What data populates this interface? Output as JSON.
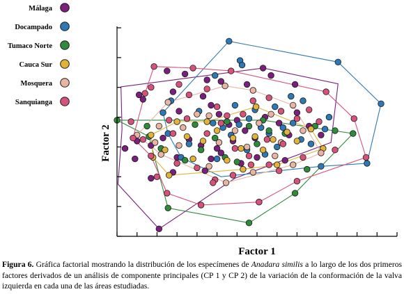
{
  "chart_data": {
    "type": "scatter",
    "title": "",
    "xlabel": "Factor 1",
    "ylabel": "Factor 2",
    "xlim": [
      -4,
      10
    ],
    "ylim": [
      -3.5,
      3.5
    ],
    "grid": false,
    "legend": "top-left",
    "convex_hulls": true,
    "series": [
      {
        "name": "Málaga",
        "color": "#7b1f7d",
        "hull": [
          [
            -3.8,
            1.52
          ],
          [
            3.3,
            2.15
          ],
          [
            7.05,
            1.62
          ],
          [
            6.7,
            -0.35
          ],
          [
            1.9,
            -1.55
          ],
          [
            -1.9,
            -3.25
          ],
          [
            -3.95,
            -1.75
          ],
          [
            -3.75,
            0.1
          ]
        ],
        "points": [
          [
            -1.5,
            2.05
          ],
          [
            -0.6,
            1.95
          ],
          [
            0.5,
            1.75
          ],
          [
            1.2,
            1.7
          ],
          [
            2.5,
            1.6
          ],
          [
            3.3,
            2.15
          ],
          [
            3.7,
            1.9
          ],
          [
            4.9,
            1.6
          ],
          [
            -2.9,
            1.25
          ],
          [
            -2.7,
            1.1
          ],
          [
            -1.2,
            1.35
          ],
          [
            -0.9,
            0.7
          ],
          [
            0.3,
            1.2
          ],
          [
            0.7,
            0.9
          ],
          [
            1.1,
            0.6
          ],
          [
            1.6,
            0.25
          ],
          [
            2.0,
            0.4
          ],
          [
            2.4,
            0.05
          ],
          [
            2.9,
            -0.2
          ],
          [
            3.4,
            0.5
          ],
          [
            4.1,
            0.3
          ],
          [
            4.6,
            -0.1
          ],
          [
            5.0,
            0.65
          ],
          [
            5.6,
            0.2
          ],
          [
            6.2,
            -0.1
          ],
          [
            -3.6,
            -0.55
          ],
          [
            -3.0,
            -0.3
          ],
          [
            -2.3,
            -0.45
          ],
          [
            -1.7,
            -0.2
          ],
          [
            -1.0,
            -0.85
          ],
          [
            -0.4,
            -0.25
          ],
          [
            0.2,
            -0.45
          ],
          [
            0.7,
            -0.9
          ],
          [
            1.2,
            -0.7
          ],
          [
            1.8,
            -0.3
          ],
          [
            2.2,
            -1.05
          ],
          [
            -1.9,
            -3.25
          ],
          [
            -2.3,
            -1.55
          ],
          [
            -1.2,
            -1.35
          ],
          [
            0.4,
            -1.3
          ],
          [
            1.0,
            -0.55
          ],
          [
            3.0,
            -0.85
          ],
          [
            4.4,
            -0.95
          ],
          [
            -3.1,
            -0.9
          ]
        ]
      },
      {
        "name": "Docampado",
        "color": "#2d78b5",
        "hull": [
          [
            -1.7,
            0.65
          ],
          [
            1.6,
            3.05
          ],
          [
            7.05,
            2.35
          ],
          [
            9.2,
            0.95
          ],
          [
            8.5,
            -1.05
          ],
          [
            6.2,
            -1.15
          ],
          [
            1.2,
            -1.5
          ],
          [
            -0.8,
            -0.85
          ],
          [
            -1.45,
            -0.05
          ]
        ],
        "points": [
          [
            1.6,
            3.05
          ],
          [
            7.05,
            2.35
          ],
          [
            9.2,
            0.95
          ],
          [
            8.5,
            -1.05
          ],
          [
            6.2,
            -1.15
          ],
          [
            2.15,
            2.4
          ],
          [
            2.25,
            2.25
          ],
          [
            0.9,
            1.9
          ],
          [
            -1.3,
            1.05
          ],
          [
            -1.7,
            0.65
          ],
          [
            -1.45,
            -0.05
          ],
          [
            0.1,
            0.7
          ],
          [
            0.8,
            0.3
          ],
          [
            1.3,
            0.15
          ],
          [
            1.7,
            -0.1
          ],
          [
            2.1,
            0.25
          ],
          [
            2.6,
            0.45
          ],
          [
            3.2,
            0.15
          ],
          [
            3.6,
            -0.05
          ],
          [
            4.3,
            0.15
          ],
          [
            4.8,
            0.3
          ],
          [
            5.2,
            -0.25
          ],
          [
            5.7,
            -0.4
          ],
          [
            6.4,
            0.1
          ],
          [
            6.6,
            0.5
          ],
          [
            5.3,
            1.05
          ],
          [
            4.7,
            1.2
          ],
          [
            3.9,
            0.85
          ],
          [
            2.9,
            0.75
          ],
          [
            1.9,
            0.9
          ],
          [
            1.0,
            -0.9
          ],
          [
            -0.8,
            -0.85
          ],
          [
            -0.4,
            -0.4
          ],
          [
            2.5,
            -0.6
          ],
          [
            3.4,
            -0.75
          ],
          [
            4.0,
            -0.5
          ]
        ]
      },
      {
        "name": "Tumaco Norte",
        "color": "#2f8a3a",
        "hull": [
          [
            -4.0,
            0.4
          ],
          [
            3.3,
            0.4
          ],
          [
            7.8,
            -0.05
          ],
          [
            4.9,
            -2.05
          ],
          [
            2.6,
            -3.05
          ],
          [
            -1.45,
            -2.55
          ],
          [
            -2.4,
            -0.15
          ]
        ],
        "points": [
          [
            -4.0,
            0.4
          ],
          [
            -2.5,
            0.2
          ],
          [
            -0.1,
            0.25
          ],
          [
            1.5,
            0.35
          ],
          [
            2.6,
            0.2
          ],
          [
            3.3,
            0.4
          ],
          [
            4.4,
            -0.05
          ],
          [
            5.9,
            0.2
          ],
          [
            6.9,
            0.05
          ],
          [
            7.8,
            -0.05
          ],
          [
            -2.4,
            -0.15
          ],
          [
            -1.8,
            -0.55
          ],
          [
            0.2,
            -0.6
          ],
          [
            0.9,
            -0.2
          ],
          [
            1.4,
            -0.85
          ],
          [
            2.0,
            -1.0
          ],
          [
            3.0,
            -0.4
          ],
          [
            3.6,
            0.05
          ],
          [
            -1.45,
            -2.55
          ],
          [
            2.6,
            -3.05
          ],
          [
            4.9,
            -2.05
          ],
          [
            3.1,
            -2.35
          ],
          [
            -0.6,
            -0.95
          ],
          [
            5.5,
            -1.25
          ]
        ]
      },
      {
        "name": "Cauca Sur",
        "color": "#e0b33a",
        "hull": [
          [
            -2.3,
            -0.1
          ],
          [
            -1.0,
            0.35
          ],
          [
            0.5,
            0.35
          ],
          [
            2.95,
            0.85
          ],
          [
            5.7,
            0.1
          ],
          [
            6.3,
            -0.55
          ],
          [
            4.0,
            -1.1
          ],
          [
            2.3,
            -1.25
          ],
          [
            -1.4,
            -1.45
          ],
          [
            -2.2,
            -0.85
          ]
        ],
        "points": [
          [
            -2.3,
            -0.1
          ],
          [
            -1.0,
            0.35
          ],
          [
            0.5,
            0.35
          ],
          [
            2.95,
            0.85
          ],
          [
            5.7,
            0.1
          ],
          [
            6.3,
            -0.55
          ],
          [
            4.0,
            -1.1
          ],
          [
            2.3,
            -1.25
          ],
          [
            -1.4,
            -1.45
          ],
          [
            -2.2,
            -0.85
          ],
          [
            -1.6,
            -0.6
          ],
          [
            -0.5,
            -0.15
          ],
          [
            0.3,
            -0.3
          ],
          [
            1.0,
            0.05
          ],
          [
            1.8,
            -0.2
          ],
          [
            2.2,
            -0.55
          ],
          [
            2.9,
            -0.15
          ],
          [
            3.8,
            -0.25
          ],
          [
            4.5,
            0.0
          ],
          [
            5.0,
            -0.3
          ],
          [
            -0.2,
            -0.9
          ],
          [
            1.5,
            -0.95
          ],
          [
            3.3,
            -0.6
          ]
        ]
      },
      {
        "name": "Mosquera",
        "color": "#e9b4a2",
        "hull": [
          [
            -3.0,
            -0.1
          ],
          [
            -1.45,
            1.0
          ],
          [
            1.4,
            1.55
          ],
          [
            2.8,
            1.4
          ],
          [
            4.8,
            0.9
          ],
          [
            6.2,
            -0.7
          ],
          [
            4.8,
            -1.1
          ],
          [
            1.45,
            -1.7
          ],
          [
            -1.8,
            -0.75
          ]
        ],
        "points": [
          [
            -1.45,
            1.0
          ],
          [
            1.4,
            1.55
          ],
          [
            2.8,
            1.4
          ],
          [
            4.8,
            0.9
          ],
          [
            6.2,
            -0.7
          ],
          [
            4.8,
            -1.1
          ],
          [
            1.45,
            -1.7
          ],
          [
            -1.8,
            -0.75
          ],
          [
            -3.0,
            -0.1
          ],
          [
            -1.9,
            0.2
          ],
          [
            -0.7,
            0.15
          ],
          [
            0.0,
            0.6
          ],
          [
            0.6,
            0.55
          ],
          [
            1.1,
            -0.35
          ],
          [
            1.9,
            0.05
          ],
          [
            2.5,
            -0.5
          ],
          [
            3.1,
            0.3
          ],
          [
            3.7,
            0.6
          ],
          [
            4.2,
            -0.35
          ],
          [
            5.3,
            0.05
          ],
          [
            -2.1,
            -0.35
          ],
          [
            -0.9,
            -0.45
          ],
          [
            0.6,
            -1.15
          ],
          [
            2.8,
            -1.35
          ],
          [
            3.9,
            -0.8
          ]
        ]
      },
      {
        "name": "Sanquianga",
        "color": "#d7527b",
        "hull": [
          [
            -2.15,
            2.2
          ],
          [
            -0.2,
            2.15
          ],
          [
            1.7,
            2.05
          ],
          [
            6.45,
            1.35
          ],
          [
            7.85,
            0.45
          ],
          [
            8.45,
            -0.85
          ],
          [
            5.0,
            -1.65
          ],
          [
            3.1,
            -2.35
          ],
          [
            0.2,
            -2.45
          ],
          [
            -1.5,
            -2.05
          ],
          [
            -2.3,
            -0.8
          ],
          [
            -3.2,
            -0.2
          ],
          [
            -2.6,
            1.3
          ]
        ],
        "points": [
          [
            -2.15,
            2.2
          ],
          [
            -0.2,
            2.15
          ],
          [
            1.7,
            2.05
          ],
          [
            6.45,
            1.35
          ],
          [
            7.85,
            0.45
          ],
          [
            8.45,
            -0.85
          ],
          [
            5.0,
            -1.65
          ],
          [
            3.1,
            -2.35
          ],
          [
            0.2,
            -2.45
          ],
          [
            -1.5,
            -2.05
          ],
          [
            -2.3,
            -0.8
          ],
          [
            -3.2,
            -0.2
          ],
          [
            -2.6,
            1.3
          ],
          [
            -2.3,
            1.5
          ],
          [
            -1.4,
            0.4
          ],
          [
            -0.9,
            1.6
          ],
          [
            -0.4,
            1.25
          ],
          [
            0.5,
            1.45
          ],
          [
            1.0,
            0.85
          ],
          [
            1.5,
            0.55
          ],
          [
            2.3,
            0.6
          ],
          [
            2.8,
            1.05
          ],
          [
            3.6,
            1.15
          ],
          [
            4.2,
            0.7
          ],
          [
            5.0,
            0.45
          ],
          [
            5.6,
            0.75
          ],
          [
            6.1,
            0.35
          ],
          [
            -3.3,
            0.35
          ],
          [
            -2.7,
            -0.25
          ],
          [
            -1.2,
            -0.05
          ],
          [
            -0.5,
            0.45
          ],
          [
            0.5,
            -0.05
          ],
          [
            1.2,
            0.3
          ],
          [
            1.9,
            -0.55
          ],
          [
            2.6,
            -0.8
          ],
          [
            3.5,
            -0.25
          ],
          [
            4.3,
            -0.4
          ],
          [
            5.3,
            -0.85
          ],
          [
            6.9,
            -0.6
          ],
          [
            -2.0,
            -1.5
          ],
          [
            -1.0,
            -1.05
          ],
          [
            0.0,
            -1.2
          ],
          [
            0.9,
            -1.6
          ],
          [
            1.8,
            -1.45
          ],
          [
            2.7,
            -1.1
          ],
          [
            3.6,
            -1.1
          ],
          [
            4.1,
            -1.3
          ],
          [
            0.8,
            -1.7
          ]
        ]
      }
    ]
  },
  "caption": {
    "label": "Figura 6.",
    "text_before": " Gráfica factorial mostrando la distribución de los especímenes de ",
    "species": "Anadara similis",
    "text_after": " a lo largo de los dos primeros factores derivados de un análisis de componente principales (CP 1 y CP 2) de la variación de la conformación de la valva izquierda en cada una de las áreas estudiadas."
  }
}
